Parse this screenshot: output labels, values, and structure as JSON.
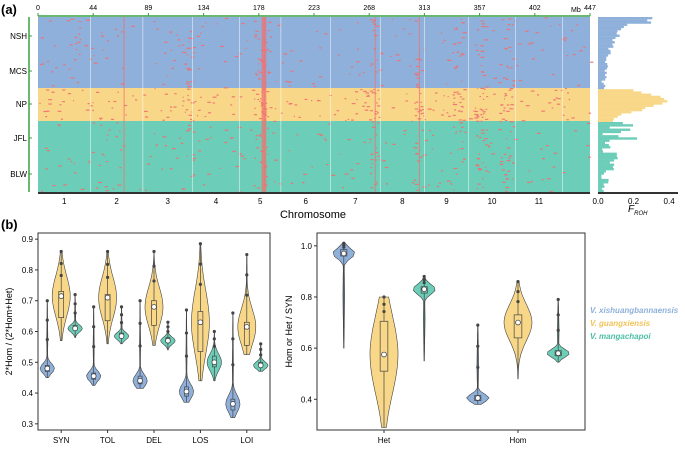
{
  "panel_a": {
    "label": "(a)",
    "top_ticks": [
      "0",
      "44",
      "89",
      "134",
      "178",
      "223",
      "268",
      "313",
      "357",
      "402",
      "447"
    ],
    "top_unit": "Mb",
    "populations": [
      "NSH",
      "MCS",
      "NP",
      "JFL",
      "BLW"
    ],
    "chromosome_ticks": [
      "1",
      "2",
      "3",
      "4",
      "5",
      "6",
      "7",
      "8",
      "9",
      "10",
      "11"
    ],
    "xlabel": "Chromosome",
    "froh_ticks": [
      "0.0",
      "0.2",
      "0.4"
    ],
    "froh_label": "F",
    "froh_sub": "ROH"
  },
  "panel_b": {
    "label": "(b)",
    "legend": [
      "V. xishuangbannaensis",
      "V. guangxiensis",
      "V. mangachapoi"
    ],
    "colors": {
      "blue": "#8fb0da",
      "yellow": "#f8d888",
      "green": "#6ccdb8",
      "roh": "#f07070"
    }
  },
  "chart_data": [
    {
      "type": "violin",
      "ylabel": "2*Hom / (2*Hom+Het)",
      "categories": [
        "SYN",
        "TOL",
        "DEL",
        "LOS",
        "LOI"
      ],
      "yticks": [
        "0.3",
        "0.4",
        "0.5",
        "0.6",
        "0.7",
        "0.8",
        "0.9"
      ],
      "ylim": [
        0.28,
        0.92
      ],
      "series": [
        {
          "name": "V. xishuangbannaensis",
          "median": [
            0.48,
            0.455,
            0.44,
            0.405,
            0.365
          ],
          "q1": [
            0.47,
            0.445,
            0.43,
            0.39,
            0.345
          ],
          "q3": [
            0.49,
            0.465,
            0.455,
            0.42,
            0.38
          ],
          "min": [
            0.45,
            0.425,
            0.415,
            0.37,
            0.32
          ],
          "max": [
            0.7,
            0.68,
            0.7,
            0.67,
            0.66
          ]
        },
        {
          "name": "V. guangxiensis",
          "median": [
            0.715,
            0.71,
            0.68,
            0.63,
            0.615
          ],
          "q1": [
            0.645,
            0.635,
            0.62,
            0.535,
            0.555
          ],
          "q3": [
            0.73,
            0.72,
            0.7,
            0.665,
            0.63
          ],
          "min": [
            0.57,
            0.56,
            0.555,
            0.44,
            0.525
          ],
          "max": [
            0.86,
            0.86,
            0.86,
            0.885,
            0.85
          ]
        },
        {
          "name": "V. mangachapoi",
          "median": [
            0.61,
            0.585,
            0.57,
            0.5,
            0.49
          ],
          "q1": [
            0.605,
            0.58,
            0.565,
            0.485,
            0.485
          ],
          "q3": [
            0.62,
            0.595,
            0.58,
            0.52,
            0.5
          ],
          "min": [
            0.58,
            0.56,
            0.54,
            0.44,
            0.47
          ],
          "max": [
            0.72,
            0.68,
            0.63,
            0.6,
            0.56
          ]
        }
      ]
    },
    {
      "type": "violin",
      "ylabel": "Hom or Het / SYN",
      "categories": [
        "Het",
        "Hom"
      ],
      "yticks": [
        "0.4",
        "0.6",
        "0.8",
        "1.0"
      ],
      "ylim": [
        0.28,
        1.05
      ],
      "series": [
        {
          "name": "V. xishuangbannaensis",
          "median": [
            0.97,
            0.405
          ],
          "q1": [
            0.96,
            0.395
          ],
          "q3": [
            0.985,
            0.415
          ],
          "min": [
            0.6,
            0.38
          ],
          "max": [
            1.01,
            0.69
          ]
        },
        {
          "name": "V. guangxiensis",
          "median": [
            0.575,
            0.7
          ],
          "q1": [
            0.51,
            0.64
          ],
          "q3": [
            0.705,
            0.73
          ],
          "min": [
            0.29,
            0.48
          ],
          "max": [
            0.8,
            0.86
          ]
        },
        {
          "name": "V. mangachapoi",
          "median": [
            0.83,
            0.58
          ],
          "q1": [
            0.815,
            0.57
          ],
          "q3": [
            0.84,
            0.59
          ],
          "min": [
            0.55,
            0.545
          ],
          "max": [
            0.88,
            0.79
          ]
        }
      ]
    }
  ]
}
